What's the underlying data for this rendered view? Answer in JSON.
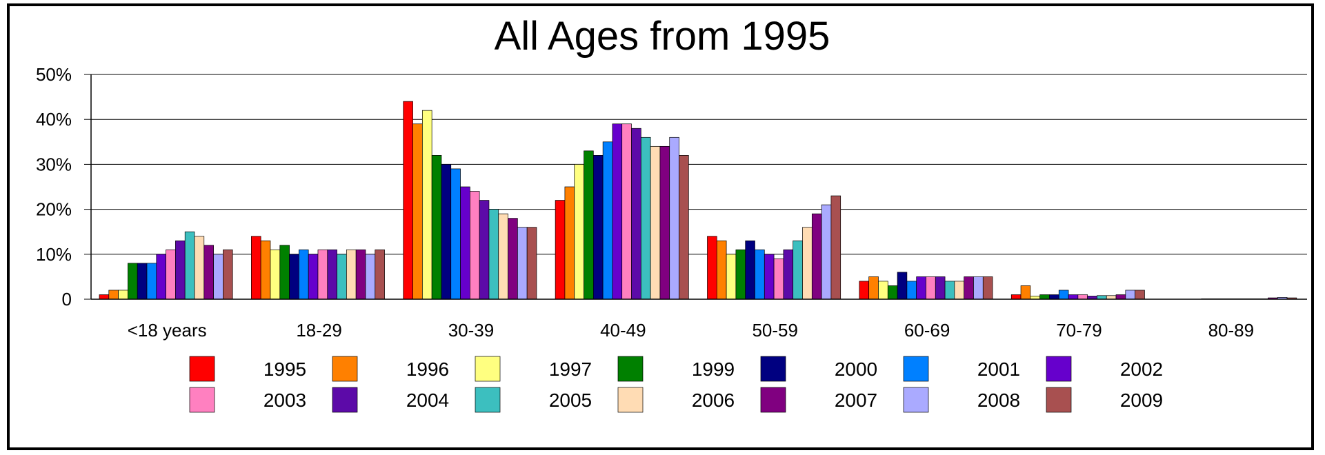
{
  "chart_data": {
    "type": "bar",
    "title": "All Ages from 1995",
    "xlabel": "",
    "ylabel": "",
    "ylim": [
      0,
      50
    ],
    "yticks": [
      "0",
      "10%",
      "20%",
      "30%",
      "40%",
      "50%"
    ],
    "grid": true,
    "legend_position": "bottom",
    "categories": [
      "<18 years",
      "18-29",
      "30-39",
      "40-49",
      "50-59",
      "60-69",
      "70-79",
      "80-89"
    ],
    "series": [
      {
        "name": "1995",
        "color": "#ff0000",
        "values": [
          1,
          14,
          44,
          22,
          14,
          4,
          1,
          0
        ]
      },
      {
        "name": "1996",
        "color": "#ff8000",
        "values": [
          2,
          13,
          39,
          25,
          13,
          5,
          3,
          0
        ]
      },
      {
        "name": "1997",
        "color": "#ffff80",
        "values": [
          2,
          11,
          42,
          30,
          10,
          4,
          0.7,
          0
        ]
      },
      {
        "name": "1999",
        "color": "#008000",
        "values": [
          8,
          12,
          32,
          33,
          11,
          3,
          1,
          0
        ]
      },
      {
        "name": "2000",
        "color": "#000080",
        "values": [
          8,
          10,
          30,
          32,
          13,
          6,
          1,
          0.1
        ]
      },
      {
        "name": "2001",
        "color": "#0080ff",
        "values": [
          8,
          11,
          29,
          35,
          11,
          4,
          2,
          0.1
        ]
      },
      {
        "name": "2002",
        "color": "#6600cc",
        "values": [
          10,
          10,
          25,
          39,
          10,
          5,
          1,
          0.1
        ]
      },
      {
        "name": "2003",
        "color": "#ff80c0",
        "values": [
          11,
          11,
          24,
          39,
          9,
          5,
          1,
          0.1
        ]
      },
      {
        "name": "2004",
        "color": "#5c0aa8",
        "values": [
          13,
          11,
          22,
          38,
          11,
          5,
          0.7,
          0.1
        ]
      },
      {
        "name": "2005",
        "color": "#3cbfbf",
        "values": [
          15,
          10,
          20,
          36,
          13,
          4,
          0.8,
          0.1
        ]
      },
      {
        "name": "2006",
        "color": "#ffdcb4",
        "values": [
          14,
          11,
          19,
          34,
          16,
          4,
          0.8,
          0.1
        ]
      },
      {
        "name": "2007",
        "color": "#800080",
        "values": [
          12,
          11,
          18,
          34,
          19,
          5,
          1,
          0.3
        ]
      },
      {
        "name": "2008",
        "color": "#aaaaff",
        "values": [
          10,
          10,
          16,
          36,
          21,
          5,
          2,
          0.4
        ]
      },
      {
        "name": "2009",
        "color": "#a85050",
        "values": [
          11,
          11,
          16,
          32,
          23,
          5,
          2,
          0.3
        ]
      }
    ]
  }
}
